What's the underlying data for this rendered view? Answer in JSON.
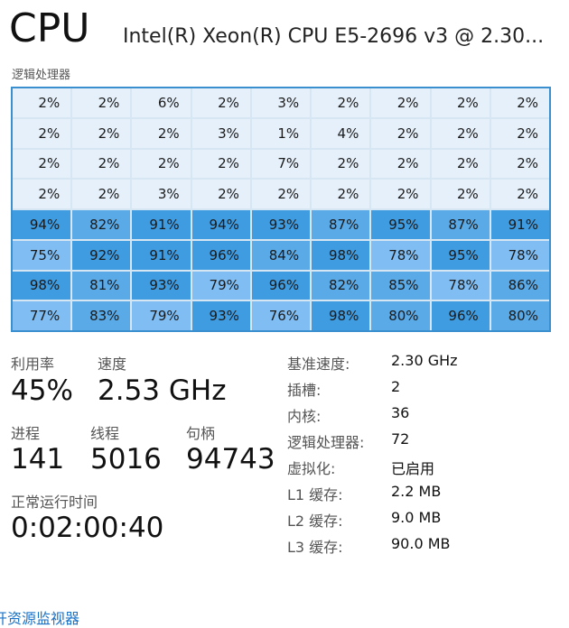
{
  "header": {
    "title": "CPU",
    "model": "Intel(R) Xeon(R) CPU E5-2696 v3 @ 2.30..."
  },
  "grid": {
    "label": "逻辑处理器",
    "rows": [
      [
        "2%",
        "2%",
        "6%",
        "2%",
        "3%",
        "2%",
        "2%",
        "2%",
        "2%"
      ],
      [
        "2%",
        "2%",
        "2%",
        "3%",
        "1%",
        "4%",
        "2%",
        "2%",
        "2%"
      ],
      [
        "2%",
        "2%",
        "2%",
        "2%",
        "7%",
        "2%",
        "2%",
        "2%",
        "2%"
      ],
      [
        "2%",
        "2%",
        "3%",
        "2%",
        "2%",
        "2%",
        "2%",
        "2%",
        "2%"
      ],
      [
        "94%",
        "82%",
        "91%",
        "94%",
        "93%",
        "87%",
        "95%",
        "87%",
        "91%"
      ],
      [
        "75%",
        "92%",
        "91%",
        "96%",
        "84%",
        "98%",
        "78%",
        "95%",
        "78%"
      ],
      [
        "98%",
        "81%",
        "93%",
        "79%",
        "96%",
        "82%",
        "85%",
        "78%",
        "86%"
      ],
      [
        "77%",
        "83%",
        "79%",
        "93%",
        "76%",
        "98%",
        "80%",
        "96%",
        "80%"
      ]
    ],
    "colors": {
      "low": "#e5f0fb",
      "mid": "#7fbdf2",
      "high": "#5aaae8",
      "max": "#3f9ce1",
      "border": "#3a8fcf"
    }
  },
  "stats": {
    "utilization": {
      "label": "利用率",
      "value": "45%"
    },
    "speed": {
      "label": "速度",
      "value": "2.53 GHz"
    },
    "processes": {
      "label": "进程",
      "value": "141"
    },
    "threads": {
      "label": "线程",
      "value": "5016"
    },
    "handles": {
      "label": "句柄",
      "value": "94743"
    },
    "uptime": {
      "label": "正常运行时间",
      "value": "0:02:00:40"
    }
  },
  "details": [
    {
      "label": "基准速度:",
      "value": "2.30 GHz"
    },
    {
      "label": "插槽:",
      "value": "2"
    },
    {
      "label": "内核:",
      "value": "36"
    },
    {
      "label": "逻辑处理器:",
      "value": "72"
    },
    {
      "label": "虚拟化:",
      "value": "已启用"
    },
    {
      "label": "L1 缓存:",
      "value": "2.2 MB"
    },
    {
      "label": "L2 缓存:",
      "value": "9.0 MB"
    },
    {
      "label": "L3 缓存:",
      "value": "90.0 MB"
    }
  ],
  "footer": {
    "link_text": "开资源监视器"
  }
}
